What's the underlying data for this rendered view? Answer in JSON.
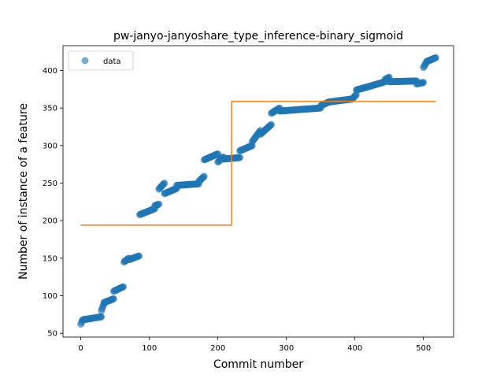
{
  "chart_data": {
    "type": "scatter",
    "title": "pw-janyo-janyoshare_type_inference-binary_sigmoid",
    "xlabel": "Commit number",
    "ylabel": "Number of instance of a feature",
    "xlim": [
      -26,
      544
    ],
    "ylim": [
      45,
      433
    ],
    "xticks": [
      0,
      100,
      200,
      300,
      400,
      500
    ],
    "yticks": [
      50,
      100,
      150,
      200,
      250,
      300,
      350,
      400
    ],
    "legend": {
      "position": "top-left",
      "entries": [
        "data"
      ]
    },
    "colors": {
      "scatter": "#1f77b4",
      "line": "#ff7f0e"
    },
    "scatter_segments": [
      {
        "x0": 0,
        "x1": 2,
        "y0": 62,
        "y1": 67
      },
      {
        "x0": 3,
        "x1": 30,
        "y0": 68,
        "y1": 72
      },
      {
        "x0": 30,
        "x1": 34,
        "y0": 80,
        "y1": 90
      },
      {
        "x0": 34,
        "x1": 48,
        "y0": 91,
        "y1": 96
      },
      {
        "x0": 48,
        "x1": 62,
        "y0": 106,
        "y1": 112
      },
      {
        "x0": 63,
        "x1": 70,
        "y0": 145,
        "y1": 150
      },
      {
        "x0": 70,
        "x1": 85,
        "y0": 148,
        "y1": 153
      },
      {
        "x0": 86,
        "x1": 108,
        "y0": 208,
        "y1": 216
      },
      {
        "x0": 108,
        "x1": 114,
        "y0": 220,
        "y1": 222
      },
      {
        "x0": 114,
        "x1": 122,
        "y0": 242,
        "y1": 250
      },
      {
        "x0": 122,
        "x1": 140,
        "y0": 236,
        "y1": 243
      },
      {
        "x0": 140,
        "x1": 172,
        "y0": 247,
        "y1": 249
      },
      {
        "x0": 172,
        "x1": 180,
        "y0": 252,
        "y1": 259
      },
      {
        "x0": 180,
        "x1": 200,
        "y0": 281,
        "y1": 289
      },
      {
        "x0": 200,
        "x1": 208,
        "y0": 278,
        "y1": 285
      },
      {
        "x0": 208,
        "x1": 232,
        "y0": 282,
        "y1": 284
      },
      {
        "x0": 232,
        "x1": 250,
        "y0": 293,
        "y1": 300
      },
      {
        "x0": 250,
        "x1": 262,
        "y0": 305,
        "y1": 320
      },
      {
        "x0": 262,
        "x1": 278,
        "y0": 315,
        "y1": 328
      },
      {
        "x0": 278,
        "x1": 290,
        "y0": 343,
        "y1": 350
      },
      {
        "x0": 290,
        "x1": 350,
        "y0": 346,
        "y1": 350
      },
      {
        "x0": 350,
        "x1": 362,
        "y0": 353,
        "y1": 358
      },
      {
        "x0": 362,
        "x1": 396,
        "y0": 358,
        "y1": 362
      },
      {
        "x0": 396,
        "x1": 402,
        "y0": 362,
        "y1": 368
      },
      {
        "x0": 402,
        "x1": 418,
        "y0": 374,
        "y1": 378
      },
      {
        "x0": 418,
        "x1": 444,
        "y0": 378,
        "y1": 385
      },
      {
        "x0": 444,
        "x1": 450,
        "y0": 388,
        "y1": 391
      },
      {
        "x0": 450,
        "x1": 490,
        "y0": 385,
        "y1": 386
      },
      {
        "x0": 490,
        "x1": 500,
        "y0": 382,
        "y1": 384
      },
      {
        "x0": 500,
        "x1": 505,
        "y0": 404,
        "y1": 412
      },
      {
        "x0": 505,
        "x1": 518,
        "y0": 412,
        "y1": 417
      }
    ],
    "fit_line": {
      "x": [
        0,
        220,
        220,
        518
      ],
      "y": [
        194,
        194,
        359,
        359
      ]
    }
  }
}
